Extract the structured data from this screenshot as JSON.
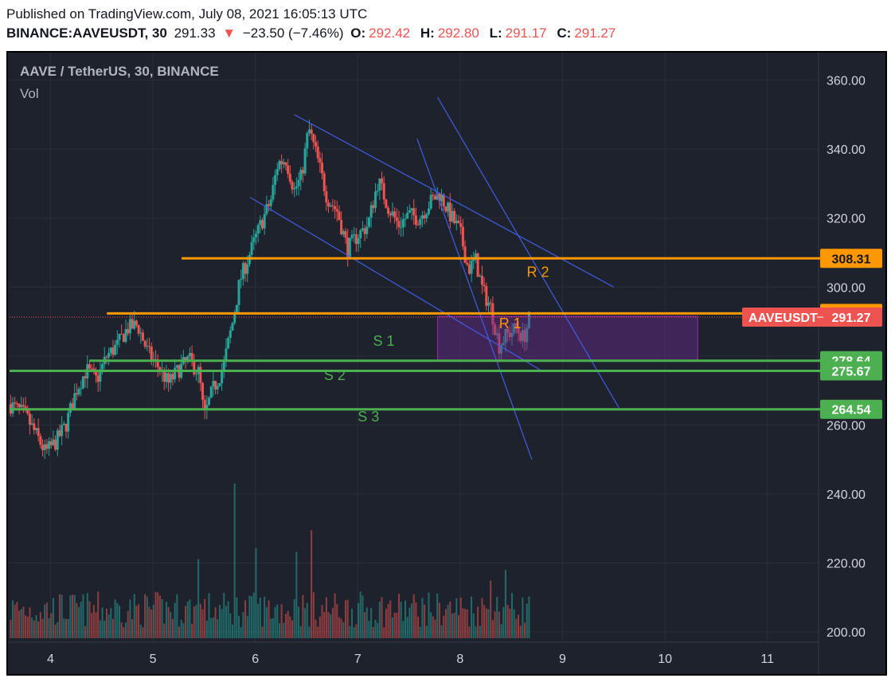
{
  "header": {
    "published": "Published on TradingView.com, July 08, 2021 16:05:13 UTC",
    "symbol": "BINANCE:AAVEUSDT, 30",
    "last": "291.33",
    "arrow": "▼",
    "change": "−23.50 (−7.46%)",
    "o_label": "O:",
    "o_value": "292.42",
    "h_label": "H:",
    "h_value": "292.80",
    "l_label": "L:",
    "l_value": "291.17",
    "c_label": "C:",
    "c_value": "291.27"
  },
  "legend": {
    "title": "AAVE / TetherUS, 30, BINANCE",
    "volume": "Vol"
  },
  "colors": {
    "background": "#1e222d",
    "grid": "#2a2e39",
    "up": "#26a69a",
    "down": "#ef5350",
    "resistance": "#ff9800",
    "support": "#4caf50",
    "trendline": "#3f5ee6",
    "zone_fill": "#6a2b8f",
    "zone_border": "#9c27b0"
  },
  "chart_data": {
    "type": "candlestick",
    "title": "AAVE / TetherUS, 30, BINANCE",
    "x_axis": {
      "ticks": [
        "4",
        "5",
        "6",
        "7",
        "8",
        "9",
        "10",
        "11"
      ],
      "values": [
        4,
        5,
        6,
        7,
        8,
        9,
        10,
        11
      ],
      "range": [
        3.6,
        11.5
      ]
    },
    "y_axis": {
      "ticks": [
        "200.00",
        "220.00",
        "240.00",
        "260.00",
        "280.00",
        "300.00",
        "320.00",
        "340.00",
        "360.00"
      ],
      "range": [
        197,
        368
      ]
    },
    "grid": true,
    "price_path": [
      [
        3.6,
        266
      ],
      [
        3.75,
        263
      ],
      [
        3.88,
        256
      ],
      [
        3.95,
        252
      ],
      [
        4.05,
        255
      ],
      [
        4.15,
        260
      ],
      [
        4.25,
        270
      ],
      [
        4.35,
        276
      ],
      [
        4.45,
        273
      ],
      [
        4.55,
        280
      ],
      [
        4.65,
        283
      ],
      [
        4.75,
        288
      ],
      [
        4.85,
        289
      ],
      [
        4.95,
        281
      ],
      [
        5.05,
        277
      ],
      [
        5.15,
        272
      ],
      [
        5.25,
        276
      ],
      [
        5.35,
        279
      ],
      [
        5.45,
        275
      ],
      [
        5.5,
        262
      ],
      [
        5.58,
        270
      ],
      [
        5.68,
        276
      ],
      [
        5.78,
        290
      ],
      [
        5.85,
        302
      ],
      [
        5.95,
        310
      ],
      [
        6.05,
        318
      ],
      [
        6.15,
        325
      ],
      [
        6.22,
        336
      ],
      [
        6.3,
        337
      ],
      [
        6.38,
        328
      ],
      [
        6.45,
        332
      ],
      [
        6.52,
        346
      ],
      [
        6.6,
        338
      ],
      [
        6.7,
        326
      ],
      [
        6.8,
        322
      ],
      [
        6.9,
        311
      ],
      [
        7.0,
        315
      ],
      [
        7.1,
        318
      ],
      [
        7.2,
        331
      ],
      [
        7.3,
        323
      ],
      [
        7.4,
        318
      ],
      [
        7.5,
        321
      ],
      [
        7.6,
        320
      ],
      [
        7.72,
        325
      ],
      [
        7.8,
        327
      ],
      [
        7.9,
        321
      ],
      [
        8.0,
        316
      ],
      [
        8.08,
        305
      ],
      [
        8.15,
        308
      ],
      [
        8.22,
        299
      ],
      [
        8.3,
        294
      ],
      [
        8.38,
        283
      ],
      [
        8.45,
        286
      ],
      [
        8.55,
        288
      ],
      [
        8.62,
        285
      ],
      [
        8.68,
        291.3
      ]
    ],
    "volume": {
      "max": 43,
      "spikes": [
        [
          5.8,
          43
        ],
        [
          6.55,
          30
        ],
        [
          5.45,
          22
        ],
        [
          6.0,
          25
        ],
        [
          6.4,
          24
        ],
        [
          8.3,
          16
        ],
        [
          8.45,
          19
        ]
      ]
    },
    "levels": [
      {
        "name": "R 2",
        "price": 308.31,
        "label": "308.31",
        "kind": "resistance",
        "x_start": 5.28
      },
      {
        "name": "R 1",
        "price": 292.36,
        "label": "292.36",
        "kind": "resistance",
        "x_start": 4.55
      },
      {
        "name": "S 1",
        "price": 278.64,
        "label": "278.64",
        "kind": "support",
        "x_start": 4.38
      },
      {
        "name": "S 2",
        "price": 275.67,
        "label": "275.67",
        "kind": "support",
        "x_start": 3.6
      },
      {
        "name": "S 3",
        "price": 264.54,
        "label": "264.54",
        "kind": "support",
        "x_start": 3.6
      }
    ],
    "level_text_positions": {
      "R 2": [
        8.65,
        303
      ],
      "R 1": [
        8.38,
        288
      ],
      "S 1": [
        7.15,
        283
      ],
      "S 2": [
        6.67,
        273
      ],
      "S 3": [
        7.0,
        261
      ]
    },
    "current_price": {
      "label": "AAVEUSDT",
      "value": "291.27",
      "price": 291.27
    },
    "zone": {
      "x1": 7.78,
      "x2": 10.32,
      "y1": 278.8,
      "y2": 291.5
    },
    "trendlines": [
      {
        "from": [
          6.38,
          350
        ],
        "to": [
          9.5,
          300
        ]
      },
      {
        "from": [
          5.95,
          326
        ],
        "to": [
          8.78,
          276
        ]
      },
      {
        "from": [
          7.78,
          355
        ],
        "to": [
          9.55,
          265
        ]
      },
      {
        "from": [
          7.58,
          343
        ],
        "to": [
          8.7,
          250
        ]
      }
    ]
  }
}
